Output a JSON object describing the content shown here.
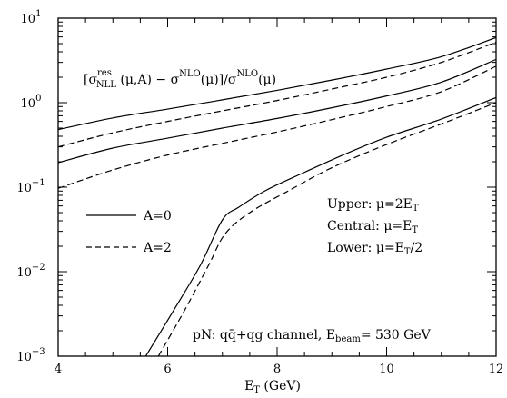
{
  "chart_data": {
    "type": "line",
    "xlabel": "E_T (GeV)",
    "ylabel": "",
    "xlim": [
      4,
      12
    ],
    "ylim": [
      0.001,
      10
    ],
    "yscale": "log",
    "grid": false,
    "x_ticks": [
      4,
      6,
      8,
      10,
      12
    ],
    "y_ticks": [
      "10^-3",
      "10^-2",
      "10^-1",
      "10^0",
      "10^1"
    ],
    "annotations": {
      "formula": "[σ^res_NLL (μ,A) − σ^NLO(μ)]/σ^NLO(μ)",
      "upper": "Upper: μ=2E_T",
      "central": "Central: μ=E_T",
      "lower": "Lower: μ=E_T/2",
      "channel": "pN: qq̄+qg channel, E_beam= 530 GeV"
    },
    "legend": {
      "placement": "center-left",
      "entries": [
        {
          "label": "A=0",
          "style": "solid"
        },
        {
          "label": "A=2",
          "style": "dashed"
        }
      ]
    },
    "series": [
      {
        "label": "A=0",
        "group": "Upper",
        "style": "solid",
        "x": [
          4,
          5,
          6,
          7,
          8,
          9,
          10,
          11,
          12
        ],
        "y": [
          0.48,
          0.66,
          0.84,
          1.08,
          1.4,
          1.85,
          2.5,
          3.5,
          5.9
        ]
      },
      {
        "label": "A=2",
        "group": "Upper",
        "style": "dashed",
        "x": [
          4,
          5,
          6,
          7,
          8,
          9,
          10,
          11,
          12
        ],
        "y": [
          0.3,
          0.44,
          0.6,
          0.8,
          1.06,
          1.45,
          2.0,
          3.0,
          5.2
        ]
      },
      {
        "label": "A=0",
        "group": "Central",
        "style": "solid",
        "x": [
          4,
          5,
          6,
          7,
          8,
          9,
          10,
          11,
          12
        ],
        "y": [
          0.195,
          0.29,
          0.38,
          0.5,
          0.65,
          0.87,
          1.2,
          1.75,
          3.25
        ]
      },
      {
        "label": "A=2",
        "group": "Central",
        "style": "dashed",
        "x": [
          4,
          5,
          6,
          7,
          8,
          9,
          10,
          11,
          12
        ],
        "y": [
          0.097,
          0.16,
          0.24,
          0.33,
          0.45,
          0.63,
          0.9,
          1.35,
          2.7
        ]
      },
      {
        "label": "A=0",
        "group": "Lower",
        "style": "solid",
        "x": [
          5.6,
          6.1,
          6.6,
          7.0,
          7.3,
          7.8,
          8.5,
          9.2,
          10,
          11,
          12
        ],
        "y": [
          0.001,
          0.0034,
          0.012,
          0.041,
          0.058,
          0.092,
          0.15,
          0.24,
          0.39,
          0.64,
          1.15
        ]
      },
      {
        "label": "A=2",
        "group": "Lower",
        "style": "dashed",
        "x": [
          5.83,
          6.3,
          6.75,
          7.05,
          7.5,
          8.2,
          9,
          10,
          11,
          12
        ],
        "y": [
          0.001,
          0.0034,
          0.012,
          0.028,
          0.05,
          0.09,
          0.17,
          0.32,
          0.56,
          1.0
        ]
      }
    ]
  }
}
